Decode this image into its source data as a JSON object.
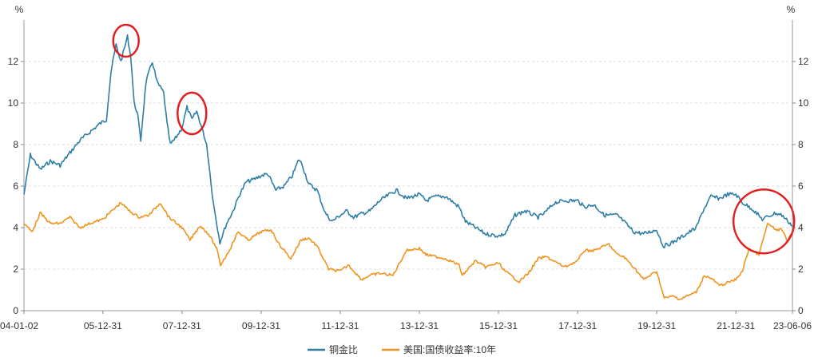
{
  "chart_data": {
    "type": "line",
    "title": "",
    "y_unit_left": "%",
    "y_unit_right": "%",
    "ylim": [
      0,
      14
    ],
    "y_ticks": [
      0,
      2,
      4,
      6,
      8,
      10,
      12
    ],
    "x_tick_labels": [
      "04-01-02",
      "05-12-31",
      "07-12-31",
      "09-12-31",
      "11-12-31",
      "13-12-31",
      "15-12-31",
      "17-12-31",
      "19-12-31",
      "21-12-31",
      "23-06-06"
    ],
    "x_tick_dates": [
      "2004-01-02",
      "2005-12-31",
      "2007-12-31",
      "2009-12-31",
      "2011-12-31",
      "2013-12-31",
      "2015-12-31",
      "2017-12-31",
      "2019-12-31",
      "2021-12-31",
      "2023-06-06"
    ],
    "legend_position": "bottom",
    "grid": {
      "y": true,
      "x": false
    },
    "series": [
      {
        "name": "铜金比",
        "color": "#2e7ea6",
        "points": [
          [
            "2004-01-02",
            5.6
          ],
          [
            "2004-03-01",
            7.5
          ],
          [
            "2004-06-01",
            6.8
          ],
          [
            "2004-09-01",
            7.2
          ],
          [
            "2004-12-01",
            7.0
          ],
          [
            "2005-03-01",
            7.6
          ],
          [
            "2005-06-01",
            8.2
          ],
          [
            "2005-09-01",
            8.6
          ],
          [
            "2005-12-01",
            9.0
          ],
          [
            "2006-02-01",
            9.2
          ],
          [
            "2006-03-15",
            11.5
          ],
          [
            "2006-05-01",
            12.8
          ],
          [
            "2006-06-15",
            12.0
          ],
          [
            "2006-08-15",
            13.2
          ],
          [
            "2006-09-15",
            12.2
          ],
          [
            "2006-10-15",
            10.0
          ],
          [
            "2006-11-15",
            9.5
          ],
          [
            "2006-12-15",
            8.2
          ],
          [
            "2007-02-01",
            11.0
          ],
          [
            "2007-04-01",
            12.0
          ],
          [
            "2007-05-15",
            11.0
          ],
          [
            "2007-07-15",
            10.5
          ],
          [
            "2007-08-15",
            9.0
          ],
          [
            "2007-09-15",
            8.0
          ],
          [
            "2007-11-01",
            8.3
          ],
          [
            "2007-12-31",
            8.8
          ],
          [
            "2008-02-15",
            9.8
          ],
          [
            "2008-04-01",
            9.2
          ],
          [
            "2008-05-15",
            9.6
          ],
          [
            "2008-07-01",
            8.8
          ],
          [
            "2008-08-15",
            8.0
          ],
          [
            "2008-10-15",
            5.2
          ],
          [
            "2008-12-15",
            3.3
          ],
          [
            "2009-02-15",
            4.2
          ],
          [
            "2009-04-15",
            4.8
          ],
          [
            "2009-06-15",
            5.6
          ],
          [
            "2009-08-15",
            6.2
          ],
          [
            "2009-10-15",
            6.3
          ],
          [
            "2009-12-31",
            6.5
          ],
          [
            "2010-03-01",
            6.6
          ],
          [
            "2010-05-15",
            5.8
          ],
          [
            "2010-08-01",
            6.0
          ],
          [
            "2010-10-15",
            6.5
          ],
          [
            "2010-12-15",
            7.3
          ],
          [
            "2011-01-15",
            7.0
          ],
          [
            "2011-03-15",
            6.1
          ],
          [
            "2011-06-01",
            5.8
          ],
          [
            "2011-08-15",
            4.7
          ],
          [
            "2011-10-15",
            4.3
          ],
          [
            "2011-12-31",
            4.6
          ],
          [
            "2012-03-01",
            4.8
          ],
          [
            "2012-05-01",
            4.5
          ],
          [
            "2012-08-01",
            4.7
          ],
          [
            "2012-10-01",
            4.8
          ],
          [
            "2012-12-31",
            5.3
          ],
          [
            "2013-03-01",
            5.5
          ],
          [
            "2013-06-01",
            5.8
          ],
          [
            "2013-09-01",
            5.4
          ],
          [
            "2013-12-31",
            5.6
          ],
          [
            "2014-03-01",
            5.3
          ],
          [
            "2014-06-01",
            5.5
          ],
          [
            "2014-09-01",
            5.5
          ],
          [
            "2014-12-31",
            5.0
          ],
          [
            "2015-03-01",
            4.3
          ],
          [
            "2015-06-01",
            4.0
          ],
          [
            "2015-09-01",
            3.7
          ],
          [
            "2015-12-31",
            3.6
          ],
          [
            "2016-03-01",
            3.7
          ],
          [
            "2016-06-01",
            4.6
          ],
          [
            "2016-09-01",
            4.8
          ],
          [
            "2016-12-31",
            4.5
          ],
          [
            "2017-03-01",
            4.7
          ],
          [
            "2017-06-01",
            5.2
          ],
          [
            "2017-09-01",
            5.3
          ],
          [
            "2017-12-31",
            5.3
          ],
          [
            "2018-03-01",
            5.0
          ],
          [
            "2018-06-01",
            5.1
          ],
          [
            "2018-09-01",
            4.6
          ],
          [
            "2018-12-31",
            4.6
          ],
          [
            "2019-03-01",
            4.3
          ],
          [
            "2019-06-01",
            3.8
          ],
          [
            "2019-09-01",
            3.7
          ],
          [
            "2019-12-31",
            3.9
          ],
          [
            "2020-03-01",
            3.1
          ],
          [
            "2020-06-01",
            3.3
          ],
          [
            "2020-09-01",
            3.6
          ],
          [
            "2020-12-31",
            4.0
          ],
          [
            "2021-03-01",
            4.8
          ],
          [
            "2021-05-15",
            5.5
          ],
          [
            "2021-08-01",
            5.4
          ],
          [
            "2021-10-15",
            5.6
          ],
          [
            "2021-12-31",
            5.6
          ],
          [
            "2022-03-01",
            5.2
          ],
          [
            "2022-06-01",
            4.9
          ],
          [
            "2022-09-01",
            4.4
          ],
          [
            "2022-12-31",
            4.7
          ],
          [
            "2023-03-01",
            4.6
          ],
          [
            "2023-06-06",
            4.1
          ]
        ]
      },
      {
        "name": "美国:国债收益率:10年",
        "color": "#f0941e",
        "points": [
          [
            "2004-01-02",
            4.2
          ],
          [
            "2004-03-15",
            3.8
          ],
          [
            "2004-06-01",
            4.7
          ],
          [
            "2004-09-01",
            4.2
          ],
          [
            "2004-12-01",
            4.2
          ],
          [
            "2005-03-01",
            4.5
          ],
          [
            "2005-06-01",
            4.0
          ],
          [
            "2005-09-01",
            4.2
          ],
          [
            "2005-12-31",
            4.4
          ],
          [
            "2006-03-01",
            4.7
          ],
          [
            "2006-06-15",
            5.2
          ],
          [
            "2006-09-01",
            4.8
          ],
          [
            "2006-12-01",
            4.5
          ],
          [
            "2007-03-01",
            4.6
          ],
          [
            "2007-06-15",
            5.2
          ],
          [
            "2007-09-01",
            4.5
          ],
          [
            "2007-12-31",
            4.0
          ],
          [
            "2008-03-15",
            3.4
          ],
          [
            "2008-06-15",
            4.1
          ],
          [
            "2008-09-01",
            3.7
          ],
          [
            "2008-11-15",
            3.0
          ],
          [
            "2008-12-20",
            2.2
          ],
          [
            "2009-03-01",
            2.8
          ],
          [
            "2009-06-01",
            3.8
          ],
          [
            "2009-09-01",
            3.4
          ],
          [
            "2009-12-31",
            3.8
          ],
          [
            "2010-04-01",
            3.9
          ],
          [
            "2010-06-15",
            3.2
          ],
          [
            "2010-10-01",
            2.5
          ],
          [
            "2011-01-01",
            3.4
          ],
          [
            "2011-03-15",
            3.5
          ],
          [
            "2011-06-01",
            3.1
          ],
          [
            "2011-09-15",
            2.0
          ],
          [
            "2011-12-31",
            1.9
          ],
          [
            "2012-03-15",
            2.2
          ],
          [
            "2012-07-15",
            1.5
          ],
          [
            "2012-10-01",
            1.7
          ],
          [
            "2012-12-31",
            1.8
          ],
          [
            "2013-05-01",
            1.7
          ],
          [
            "2013-09-01",
            2.9
          ],
          [
            "2013-12-31",
            3.0
          ],
          [
            "2014-03-01",
            2.7
          ],
          [
            "2014-06-01",
            2.6
          ],
          [
            "2014-09-01",
            2.5
          ],
          [
            "2014-12-31",
            2.2
          ],
          [
            "2015-02-01",
            1.7
          ],
          [
            "2015-06-01",
            2.4
          ],
          [
            "2015-09-01",
            2.1
          ],
          [
            "2015-12-31",
            2.3
          ],
          [
            "2016-03-01",
            1.9
          ],
          [
            "2016-07-08",
            1.4
          ],
          [
            "2016-10-01",
            1.8
          ],
          [
            "2016-12-31",
            2.5
          ],
          [
            "2017-03-15",
            2.6
          ],
          [
            "2017-09-01",
            2.1
          ],
          [
            "2017-12-31",
            2.4
          ],
          [
            "2018-03-01",
            2.9
          ],
          [
            "2018-06-01",
            2.9
          ],
          [
            "2018-10-15",
            3.2
          ],
          [
            "2018-12-31",
            2.7
          ],
          [
            "2019-03-01",
            2.6
          ],
          [
            "2019-06-01",
            2.1
          ],
          [
            "2019-09-01",
            1.5
          ],
          [
            "2019-12-31",
            1.9
          ],
          [
            "2020-03-09",
            0.6
          ],
          [
            "2020-06-01",
            0.7
          ],
          [
            "2020-08-01",
            0.55
          ],
          [
            "2020-12-31",
            0.9
          ],
          [
            "2021-03-15",
            1.7
          ],
          [
            "2021-06-01",
            1.5
          ],
          [
            "2021-08-01",
            1.2
          ],
          [
            "2021-12-31",
            1.5
          ],
          [
            "2022-03-01",
            1.9
          ],
          [
            "2022-05-01",
            3.0
          ],
          [
            "2022-08-01",
            2.7
          ],
          [
            "2022-10-20",
            4.2
          ],
          [
            "2022-12-31",
            3.9
          ],
          [
            "2023-03-01",
            3.9
          ],
          [
            "2023-04-15",
            3.4
          ],
          [
            "2023-06-06",
            3.7
          ]
        ]
      }
    ],
    "annotations": [
      {
        "type": "circle",
        "color": "#e02020",
        "at": [
          "2006-08-01",
          13.0
        ]
      },
      {
        "type": "circle",
        "color": "#e02020",
        "at": [
          "2008-04-01",
          9.5
        ]
      },
      {
        "type": "circle",
        "color": "#e02020",
        "at": [
          "2022-09-15",
          4.3
        ]
      }
    ]
  }
}
